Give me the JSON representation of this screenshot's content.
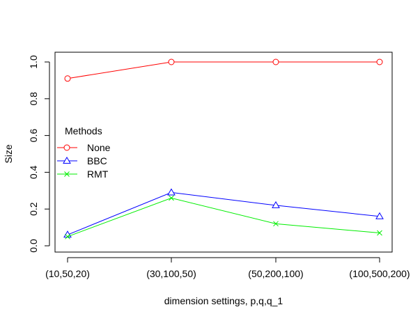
{
  "chart_data": {
    "type": "line",
    "xlabel": "dimension settings, p,q,q_1",
    "ylabel": "Size",
    "categories": [
      "(10,50,20)",
      "(30,100,50)",
      "(50,200,100)",
      "(100,500,200)"
    ],
    "ylim": [
      0,
      1
    ],
    "yticks": [
      "0.0",
      "0.2",
      "0.4",
      "0.6",
      "0.8",
      "1.0"
    ],
    "grid": false,
    "legend": {
      "title": "Methods",
      "placement": "left-center"
    },
    "series": [
      {
        "name": "None",
        "color": "#ff0000",
        "marker": "circle",
        "values": [
          0.91,
          1.0,
          1.0,
          1.0
        ]
      },
      {
        "name": "BBC",
        "color": "#0000ff",
        "marker": "triangle",
        "values": [
          0.06,
          0.29,
          0.22,
          0.16
        ]
      },
      {
        "name": "RMT",
        "color": "#00ee00",
        "marker": "cross",
        "values": [
          0.05,
          0.26,
          0.12,
          0.07
        ]
      }
    ]
  }
}
